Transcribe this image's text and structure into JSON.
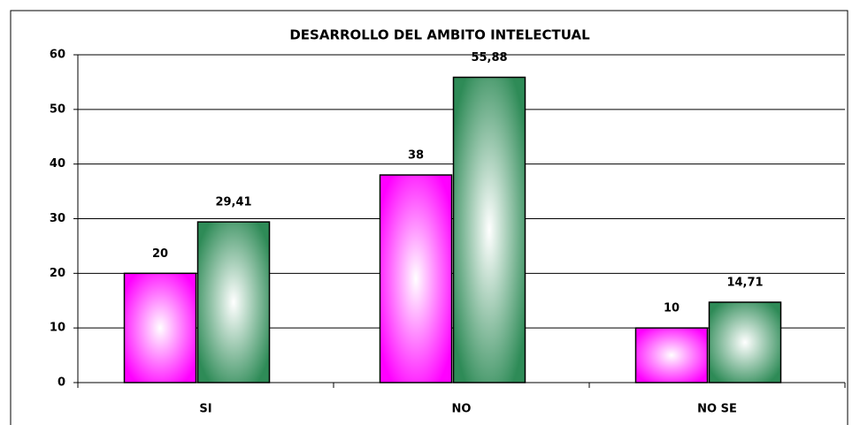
{
  "chart_data": {
    "type": "bar",
    "title": "DESARROLLO DEL AMBITO INTELECTUAL",
    "categories": [
      "SI",
      "NO",
      "NO SE"
    ],
    "series": [
      {
        "color": "#ff00ff",
        "values": [
          20,
          38,
          10
        ]
      },
      {
        "color": "#2e8b57",
        "values": [
          29.41,
          55.88,
          14.71
        ],
        "value_labels": [
          "29,41",
          "55,88",
          "14,71"
        ]
      }
    ],
    "ylim": [
      0,
      60
    ],
    "yticks": [
      0,
      10,
      20,
      30,
      40,
      50,
      60
    ],
    "grid": true
  }
}
